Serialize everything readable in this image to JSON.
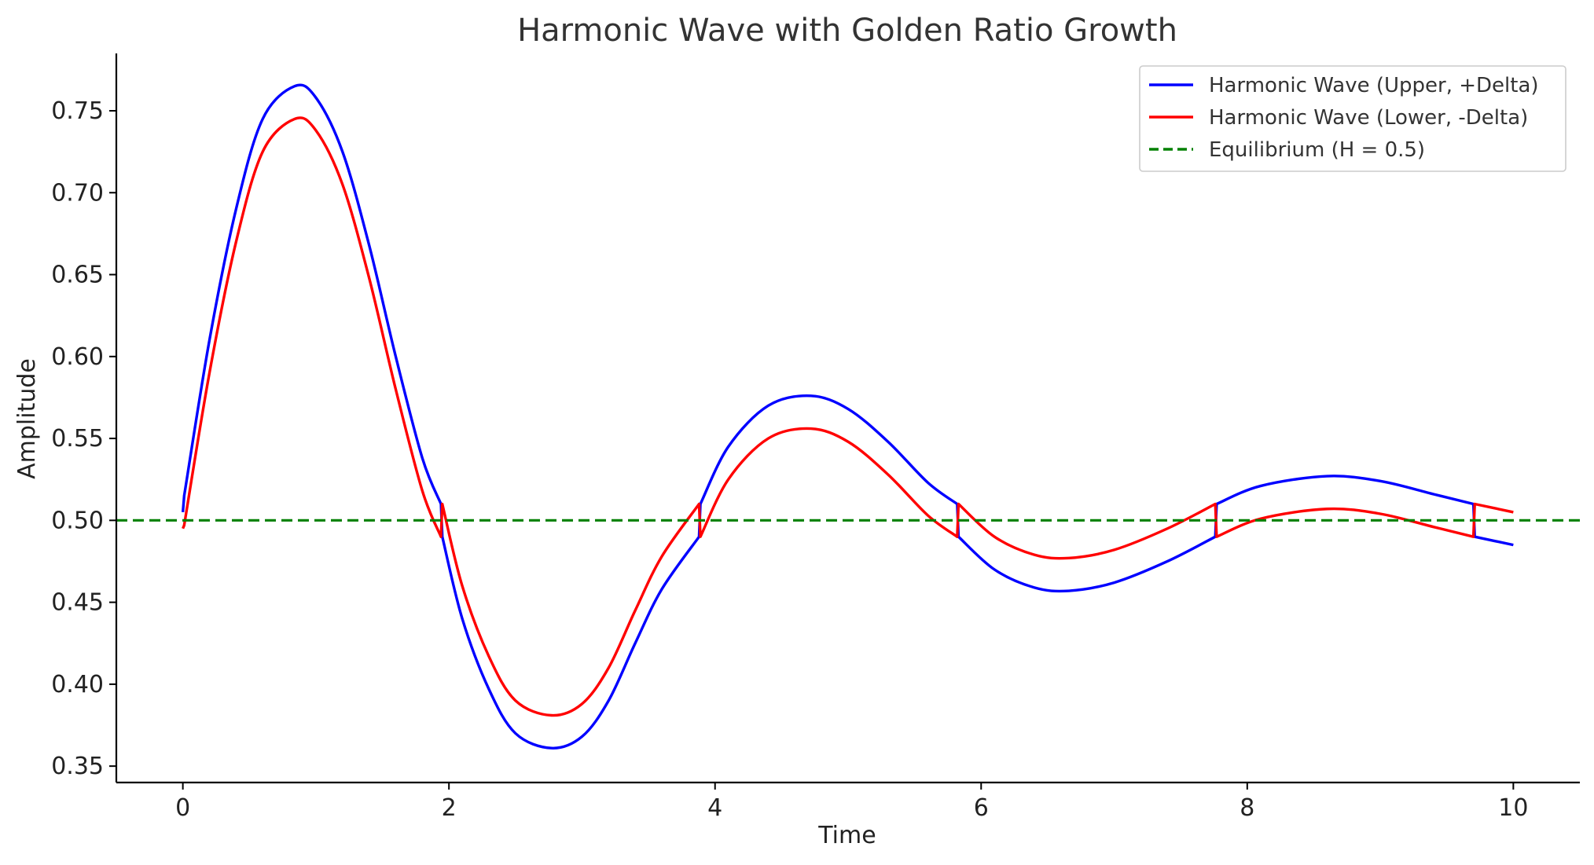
{
  "chart_data": {
    "type": "line",
    "title": "Harmonic Wave with Golden Ratio Growth",
    "xlabel": "Time",
    "ylabel": "Amplitude",
    "xlim": [
      -0.5,
      10.5
    ],
    "ylim": [
      0.34,
      0.785
    ],
    "xticks": [
      0,
      2,
      4,
      6,
      8,
      10
    ],
    "xtick_labels": [
      "0",
      "2",
      "4",
      "6",
      "8",
      "10"
    ],
    "yticks": [
      0.35,
      0.4,
      0.45,
      0.5,
      0.55,
      0.6,
      0.65,
      0.7,
      0.75
    ],
    "ytick_labels": [
      "0.35",
      "0.40",
      "0.45",
      "0.50",
      "0.55",
      "0.60",
      "0.65",
      "0.70",
      "0.75"
    ],
    "grid": false,
    "legend_position": "top-right",
    "series": [
      {
        "name": "Harmonic Wave (Upper, +Delta)",
        "color": "#0000ff",
        "style": "solid",
        "points": [
          [
            0.0,
            0.505
          ],
          [
            0.01,
            0.515
          ],
          [
            0.2,
            0.61
          ],
          [
            0.4,
            0.69
          ],
          [
            0.6,
            0.745
          ],
          [
            0.84,
            0.765
          ],
          [
            1.0,
            0.758
          ],
          [
            1.2,
            0.725
          ],
          [
            1.4,
            0.668
          ],
          [
            1.6,
            0.6
          ],
          [
            1.8,
            0.538
          ],
          [
            1.94,
            0.51
          ],
          [
            1.95,
            0.49
          ],
          [
            2.1,
            0.44
          ],
          [
            2.3,
            0.397
          ],
          [
            2.5,
            0.37
          ],
          [
            2.77,
            0.361
          ],
          [
            3.0,
            0.368
          ],
          [
            3.2,
            0.39
          ],
          [
            3.4,
            0.425
          ],
          [
            3.6,
            0.458
          ],
          [
            3.88,
            0.49
          ],
          [
            3.89,
            0.51
          ],
          [
            4.1,
            0.545
          ],
          [
            4.4,
            0.57
          ],
          [
            4.72,
            0.576
          ],
          [
            5.0,
            0.568
          ],
          [
            5.3,
            0.548
          ],
          [
            5.6,
            0.523
          ],
          [
            5.82,
            0.51
          ],
          [
            5.83,
            0.49
          ],
          [
            6.1,
            0.47
          ],
          [
            6.4,
            0.459
          ],
          [
            6.66,
            0.457
          ],
          [
            7.0,
            0.462
          ],
          [
            7.4,
            0.475
          ],
          [
            7.76,
            0.49
          ],
          [
            7.77,
            0.51
          ],
          [
            8.1,
            0.521
          ],
          [
            8.6,
            0.527
          ],
          [
            9.0,
            0.524
          ],
          [
            9.4,
            0.516
          ],
          [
            9.7,
            0.51
          ],
          [
            9.71,
            0.49
          ],
          [
            10.0,
            0.485
          ]
        ]
      },
      {
        "name": "Harmonic Wave (Lower, -Delta)",
        "color": "#ff0000",
        "style": "solid",
        "points": [
          [
            0.0,
            0.495
          ],
          [
            0.01,
            0.497
          ],
          [
            0.2,
            0.59
          ],
          [
            0.4,
            0.67
          ],
          [
            0.6,
            0.725
          ],
          [
            0.84,
            0.745
          ],
          [
            1.0,
            0.738
          ],
          [
            1.2,
            0.705
          ],
          [
            1.4,
            0.648
          ],
          [
            1.6,
            0.58
          ],
          [
            1.8,
            0.518
          ],
          [
            1.94,
            0.49
          ],
          [
            1.95,
            0.51
          ],
          [
            2.1,
            0.46
          ],
          [
            2.3,
            0.417
          ],
          [
            2.5,
            0.39
          ],
          [
            2.77,
            0.381
          ],
          [
            3.0,
            0.388
          ],
          [
            3.2,
            0.41
          ],
          [
            3.4,
            0.445
          ],
          [
            3.6,
            0.478
          ],
          [
            3.88,
            0.51
          ],
          [
            3.89,
            0.49
          ],
          [
            4.1,
            0.525
          ],
          [
            4.4,
            0.55
          ],
          [
            4.72,
            0.556
          ],
          [
            5.0,
            0.548
          ],
          [
            5.3,
            0.528
          ],
          [
            5.6,
            0.503
          ],
          [
            5.82,
            0.49
          ],
          [
            5.83,
            0.51
          ],
          [
            6.1,
            0.49
          ],
          [
            6.4,
            0.479
          ],
          [
            6.66,
            0.477
          ],
          [
            7.0,
            0.482
          ],
          [
            7.4,
            0.495
          ],
          [
            7.76,
            0.51
          ],
          [
            7.77,
            0.49
          ],
          [
            8.1,
            0.501
          ],
          [
            8.6,
            0.507
          ],
          [
            9.0,
            0.504
          ],
          [
            9.4,
            0.496
          ],
          [
            9.7,
            0.49
          ],
          [
            9.71,
            0.51
          ],
          [
            10.0,
            0.505
          ]
        ]
      },
      {
        "name": "Equilibrium (H = 0.5)",
        "color": "#008000",
        "style": "dashed",
        "hline": 0.5
      }
    ]
  }
}
